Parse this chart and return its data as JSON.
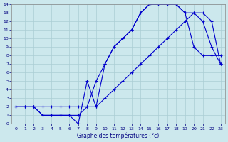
{
  "xlabel": "Graphe des températures (°c)",
  "xlim": [
    -0.5,
    23.5
  ],
  "ylim": [
    0,
    14
  ],
  "xticks": [
    0,
    1,
    2,
    3,
    4,
    5,
    6,
    7,
    8,
    9,
    10,
    11,
    12,
    13,
    14,
    15,
    16,
    17,
    18,
    19,
    20,
    21,
    22,
    23
  ],
  "yticks": [
    0,
    1,
    2,
    3,
    4,
    5,
    6,
    7,
    8,
    9,
    10,
    11,
    12,
    13,
    14
  ],
  "background_color": "#cce8ed",
  "grid_color": "#aacdd4",
  "line_color": "#0000cc",
  "line1_x": [
    0,
    1,
    2,
    3,
    4,
    5,
    6,
    7,
    8,
    9,
    10,
    11,
    12,
    13,
    14,
    15,
    16,
    17,
    18,
    19,
    20,
    21,
    22,
    23
  ],
  "line1_y": [
    2,
    2,
    2,
    1,
    1,
    1,
    1,
    1,
    2,
    5,
    7,
    9,
    10,
    11,
    13,
    14,
    14,
    14,
    14,
    13,
    9,
    8,
    8,
    8
  ],
  "line2_x": [
    0,
    1,
    2,
    3,
    4,
    5,
    6,
    7,
    8,
    9,
    10,
    11,
    12,
    13,
    14,
    15,
    16,
    17,
    18,
    19,
    20,
    21,
    22,
    23
  ],
  "line2_y": [
    2,
    2,
    2,
    1,
    1,
    1,
    1,
    0,
    5,
    2,
    7,
    9,
    10,
    11,
    13,
    14,
    14,
    14,
    14,
    13,
    13,
    12,
    9,
    7
  ],
  "line3_x": [
    0,
    2,
    3,
    4,
    5,
    6,
    7,
    8,
    9,
    10,
    11,
    12,
    13,
    14,
    15,
    16,
    17,
    18,
    19,
    20,
    21,
    22,
    23
  ],
  "line3_y": [
    2,
    2,
    2,
    2,
    2,
    2,
    2,
    2,
    2,
    3,
    4,
    5,
    6,
    7,
    8,
    9,
    10,
    11,
    12,
    13,
    13,
    12,
    7
  ],
  "marker": "+",
  "markersize": 3,
  "linewidth": 0.8
}
